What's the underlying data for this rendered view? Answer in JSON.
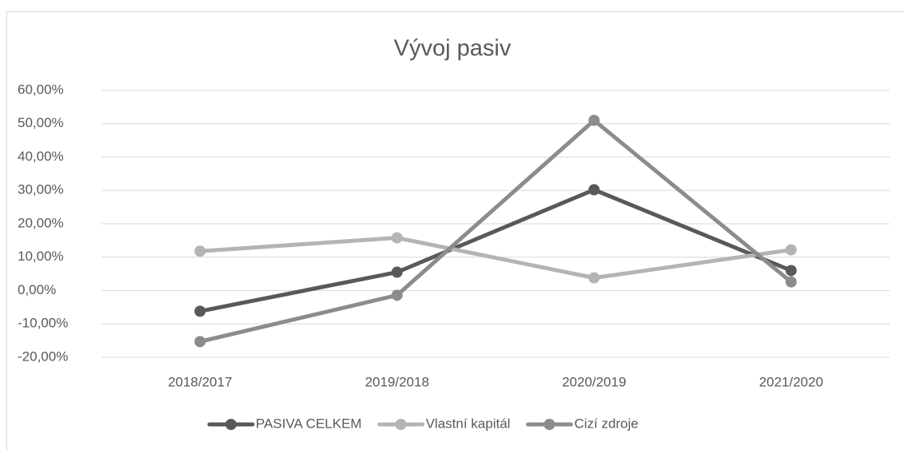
{
  "chart_data": {
    "type": "line",
    "title": "Vývoj pasiv",
    "categories": [
      "2018/2017",
      "2019/2018",
      "2020/2019",
      "2021/2020"
    ],
    "series": [
      {
        "name": "PASIVA CELKEM",
        "color": "#595959",
        "values": [
          -6.2,
          5.5,
          30.2,
          6.0
        ]
      },
      {
        "name": "Vlastní kapitál",
        "color": "#b4b4b4",
        "values": [
          11.8,
          15.8,
          3.8,
          12.2
        ]
      },
      {
        "name": "Cizí zdroje",
        "color": "#8c8c8c",
        "values": [
          -15.3,
          -1.4,
          51.0,
          2.6
        ]
      }
    ],
    "ylim": [
      -20,
      60
    ],
    "yticks": [
      {
        "value": -20,
        "label": "-20,00%"
      },
      {
        "value": -10,
        "label": "-10,00%"
      },
      {
        "value": 0,
        "label": "0,00%"
      },
      {
        "value": 10,
        "label": "10,00%"
      },
      {
        "value": 20,
        "label": "20,00%"
      },
      {
        "value": 30,
        "label": "30,00%"
      },
      {
        "value": 40,
        "label": "40,00%"
      },
      {
        "value": 50,
        "label": "50,00%"
      },
      {
        "value": 60,
        "label": "60,00%"
      }
    ],
    "grid": true,
    "legend": "bottom"
  }
}
